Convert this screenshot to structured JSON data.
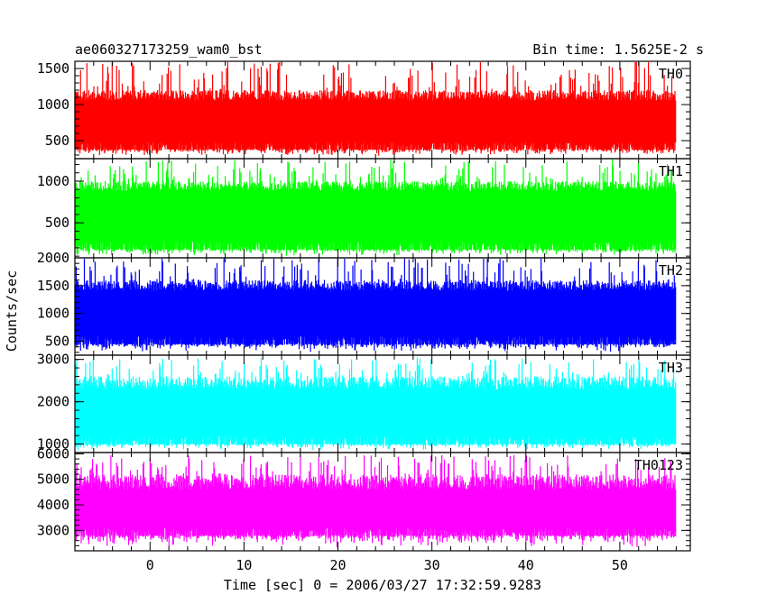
{
  "header": {
    "title": "ae060327173259_wam0_bst",
    "bin_time": "Bin time: 1.5625E-2 s"
  },
  "axes": {
    "xlabel": "Time [sec] 0 = 2006/03/27 17:32:59.9283",
    "ylabel": "Counts/sec"
  },
  "chart_data": [
    {
      "type": "line",
      "name": "TH0",
      "color": "#ff0000",
      "x_range": [
        -8,
        56
      ],
      "ylim": [
        250,
        1600
      ],
      "yticks": [
        500,
        1000,
        1500
      ],
      "band_x": [
        -8,
        56
      ],
      "y_typical_low": 380,
      "y_typical_high": 1200,
      "y_min": 280,
      "y_max": 1600
    },
    {
      "type": "line",
      "name": "TH1",
      "color": "#00ff00",
      "x_range": [
        -8,
        56
      ],
      "ylim": [
        80,
        1270
      ],
      "yticks": [
        500,
        1000
      ],
      "band_x": [
        -8,
        56
      ],
      "y_typical_low": 180,
      "y_typical_high": 1000,
      "y_min": 100,
      "y_max": 1260
    },
    {
      "type": "line",
      "name": "TH2",
      "color": "#0000ff",
      "x_range": [
        -8,
        56
      ],
      "ylim": [
        250,
        2000
      ],
      "yticks": [
        500,
        1000,
        1500,
        2000
      ],
      "band_x": [
        -8,
        56
      ],
      "y_typical_low": 450,
      "y_typical_high": 1600,
      "y_min": 300,
      "y_max": 2000
    },
    {
      "type": "line",
      "name": "TH3",
      "color": "#00ffff",
      "x_range": [
        -8,
        56
      ],
      "ylim": [
        800,
        3100
      ],
      "yticks": [
        1000,
        2000,
        3000
      ],
      "band_x": [
        -8,
        56
      ],
      "y_typical_low": 1000,
      "y_typical_high": 2600,
      "y_min": 850,
      "y_max": 3050
    },
    {
      "type": "line",
      "name": "TH0123",
      "color": "#ff00ff",
      "x_range": [
        -8,
        56
      ],
      "ylim": [
        2200,
        6050
      ],
      "yticks": [
        3000,
        4000,
        5000,
        6000
      ],
      "band_x": [
        -8,
        56
      ],
      "y_typical_low": 2800,
      "y_typical_high": 5200,
      "y_min": 2300,
      "y_max": 5950
    }
  ],
  "x_axis": {
    "range": [
      -8,
      57.5
    ],
    "major_ticks": [
      0,
      10,
      20,
      30,
      40,
      50
    ],
    "major_labels": [
      "0",
      "10",
      "20",
      "30",
      "40",
      "50"
    ],
    "minor_step": 2
  }
}
